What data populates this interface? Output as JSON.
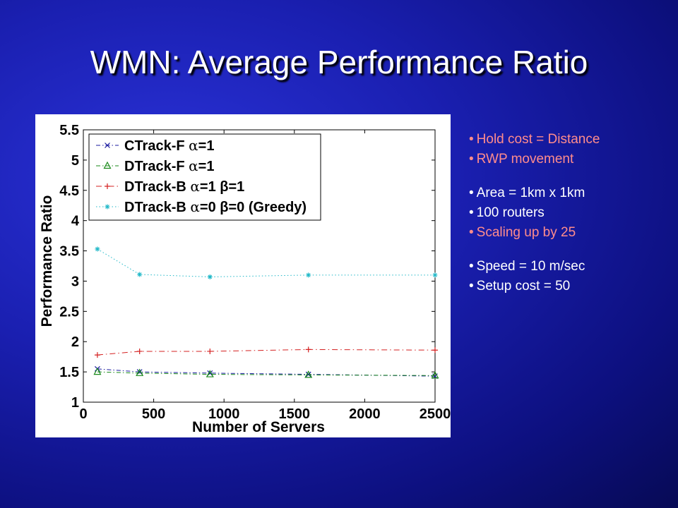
{
  "slide": {
    "title": "WMN: Average Performance Ratio"
  },
  "bullets": [
    {
      "text": "Hold cost = Distance",
      "color": "#ff8c8c",
      "gap": false
    },
    {
      "text": "RWP movement",
      "color": "#ff8c8c",
      "gap": false
    },
    {
      "text": "Area = 1km x 1km",
      "color": "#ffffff",
      "gap": true
    },
    {
      "text": "100 routers",
      "color": "#ffffff",
      "gap": false
    },
    {
      "text": "Scaling up by 25",
      "color": "#ff8c8c",
      "gap": false
    },
    {
      "text": "Speed = 10 m/sec",
      "color": "#ffffff",
      "gap": true
    },
    {
      "text": "Setup cost = 50",
      "color": "#ffffff",
      "gap": false
    }
  ],
  "chart_data": {
    "type": "line",
    "xlabel": "Number of Servers",
    "ylabel": "Performance Ratio",
    "xlim": [
      0,
      2500
    ],
    "ylim": [
      1,
      5.5
    ],
    "xticks": [
      0,
      500,
      1000,
      1500,
      2000,
      2500
    ],
    "yticks": [
      1,
      1.5,
      2,
      2.5,
      3,
      3.5,
      4,
      4.5,
      5,
      5.5
    ],
    "ytick_labels": [
      "1",
      "1.5",
      "2",
      "2.5",
      "3",
      "3.5",
      "4",
      "4.5",
      "5",
      "5.5"
    ],
    "grid": false,
    "legend_position": "top-left",
    "series": [
      {
        "name": "CTrack-F α=1",
        "prefix": "CTrack-F ",
        "greek": "α",
        "suffix": "=1",
        "color": "#1a1aa0",
        "marker": "x",
        "dash": "6,3,1.5,3",
        "x": [
          100,
          400,
          900,
          1600,
          2500
        ],
        "y": [
          1.55,
          1.5,
          1.48,
          1.46,
          1.43
        ]
      },
      {
        "name": "DTrack-F α=1",
        "prefix": "DTrack-F ",
        "greek": "α",
        "suffix": "=1",
        "color": "#1a8a1a",
        "marker": "triangle",
        "dash": "6,3,1.5,3",
        "x": [
          100,
          400,
          900,
          1600,
          2500
        ],
        "y": [
          1.5,
          1.48,
          1.46,
          1.45,
          1.44
        ]
      },
      {
        "name": "DTrack-B α=1 β=1",
        "prefix": "DTrack-B ",
        "greek": "α",
        "suffix": "=1 β=1",
        "color": "#d42020",
        "marker": "plus",
        "dash": "8,4,1.5,4",
        "x": [
          100,
          400,
          900,
          1600,
          2500
        ],
        "y": [
          1.78,
          1.84,
          1.84,
          1.87,
          1.86
        ]
      },
      {
        "name": "DTrack-B α=0 β=0 (Greedy)",
        "prefix": "DTrack-B ",
        "greek": "α",
        "suffix": "=0 β=0 (Greedy)",
        "color": "#20b8c8",
        "marker": "star",
        "dash": "1.5,3",
        "x": [
          100,
          400,
          900,
          1600,
          2500
        ],
        "y": [
          3.53,
          3.11,
          3.07,
          3.1,
          3.1
        ]
      }
    ]
  }
}
